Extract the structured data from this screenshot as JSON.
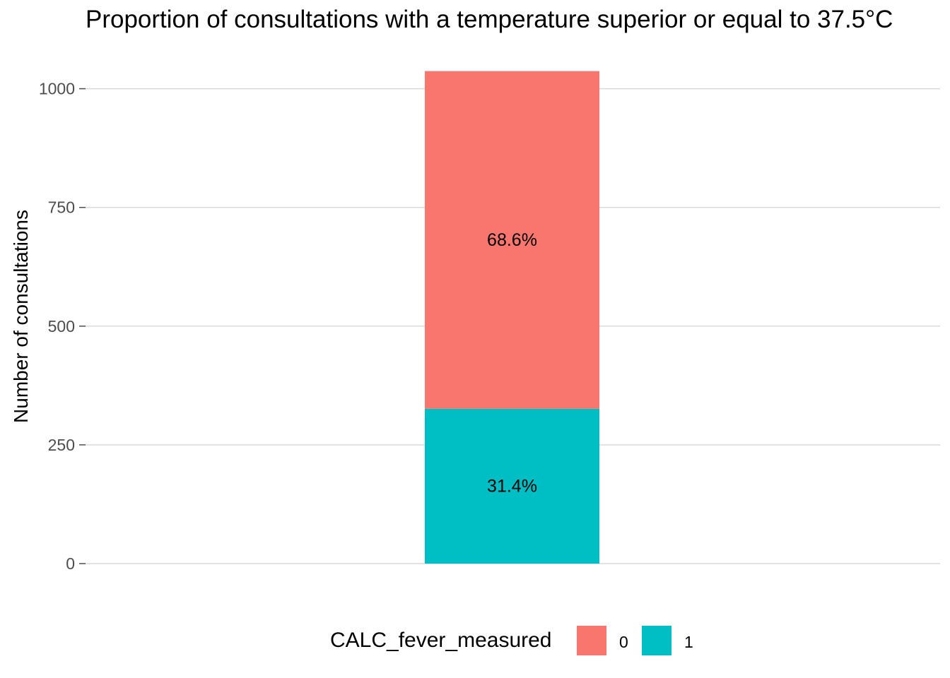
{
  "chart_data": {
    "type": "bar",
    "stacked": true,
    "title": "Proportion of consultations with a temperature superior or equal to 37.5°C",
    "xlabel": "",
    "ylabel": "Number of consultations",
    "ylim": [
      0,
      1037
    ],
    "yticks": [
      0,
      250,
      500,
      750,
      1000
    ],
    "grid": true,
    "legend_position": "bottom",
    "legend_title": "CALC_fever_measured",
    "categories": [
      ""
    ],
    "series": [
      {
        "name": "0",
        "values": [
          711
        ],
        "label": "68.6%",
        "color": "#F8766D"
      },
      {
        "name": "1",
        "values": [
          326
        ],
        "label": "31.4%",
        "color": "#00BFC4"
      }
    ]
  }
}
